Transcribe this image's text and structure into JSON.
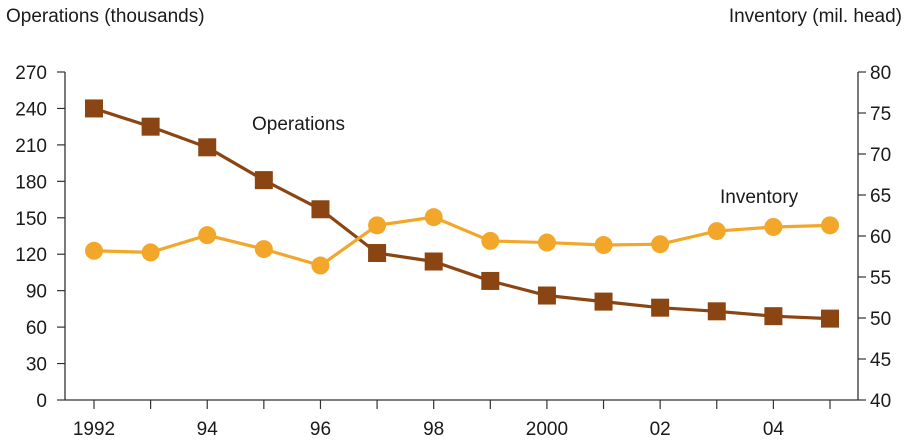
{
  "chart_data": {
    "type": "line",
    "title": "",
    "xlabel": "",
    "ylabel_left": "Operations (thousands)",
    "ylabel_right": "Inventory (mil. head)",
    "x": [
      1992,
      1993,
      1994,
      1995,
      1996,
      1997,
      1998,
      1999,
      2000,
      2001,
      2002,
      2003,
      2004,
      2005
    ],
    "x_tick_labels": [
      "1992",
      "",
      "94",
      "",
      "96",
      "",
      "98",
      "",
      "2000",
      "",
      "02",
      "",
      "04",
      ""
    ],
    "ylim_left": [
      0,
      270
    ],
    "yticks_left": [
      "0",
      "30",
      "60",
      "90",
      "120",
      "150",
      "180",
      "210",
      "240",
      "270"
    ],
    "ylim_right": [
      40,
      80
    ],
    "yticks_right": [
      "40",
      "45",
      "50",
      "55",
      "60",
      "65",
      "70",
      "75",
      "80"
    ],
    "grid": false,
    "legend": "inline labels",
    "series": [
      {
        "name": "Operations",
        "axis": "left",
        "color": "#8B4513",
        "marker": "square",
        "values": [
          240,
          225,
          208,
          181,
          157,
          121,
          114,
          98,
          86,
          81,
          76,
          73,
          69,
          67
        ]
      },
      {
        "name": "Inventory",
        "axis": "right",
        "color": "#F2A72A",
        "marker": "circle",
        "values": [
          58.2,
          58.0,
          60.1,
          58.4,
          56.4,
          61.3,
          62.3,
          59.4,
          59.2,
          58.9,
          59.0,
          60.6,
          61.1,
          61.3
        ]
      }
    ]
  }
}
